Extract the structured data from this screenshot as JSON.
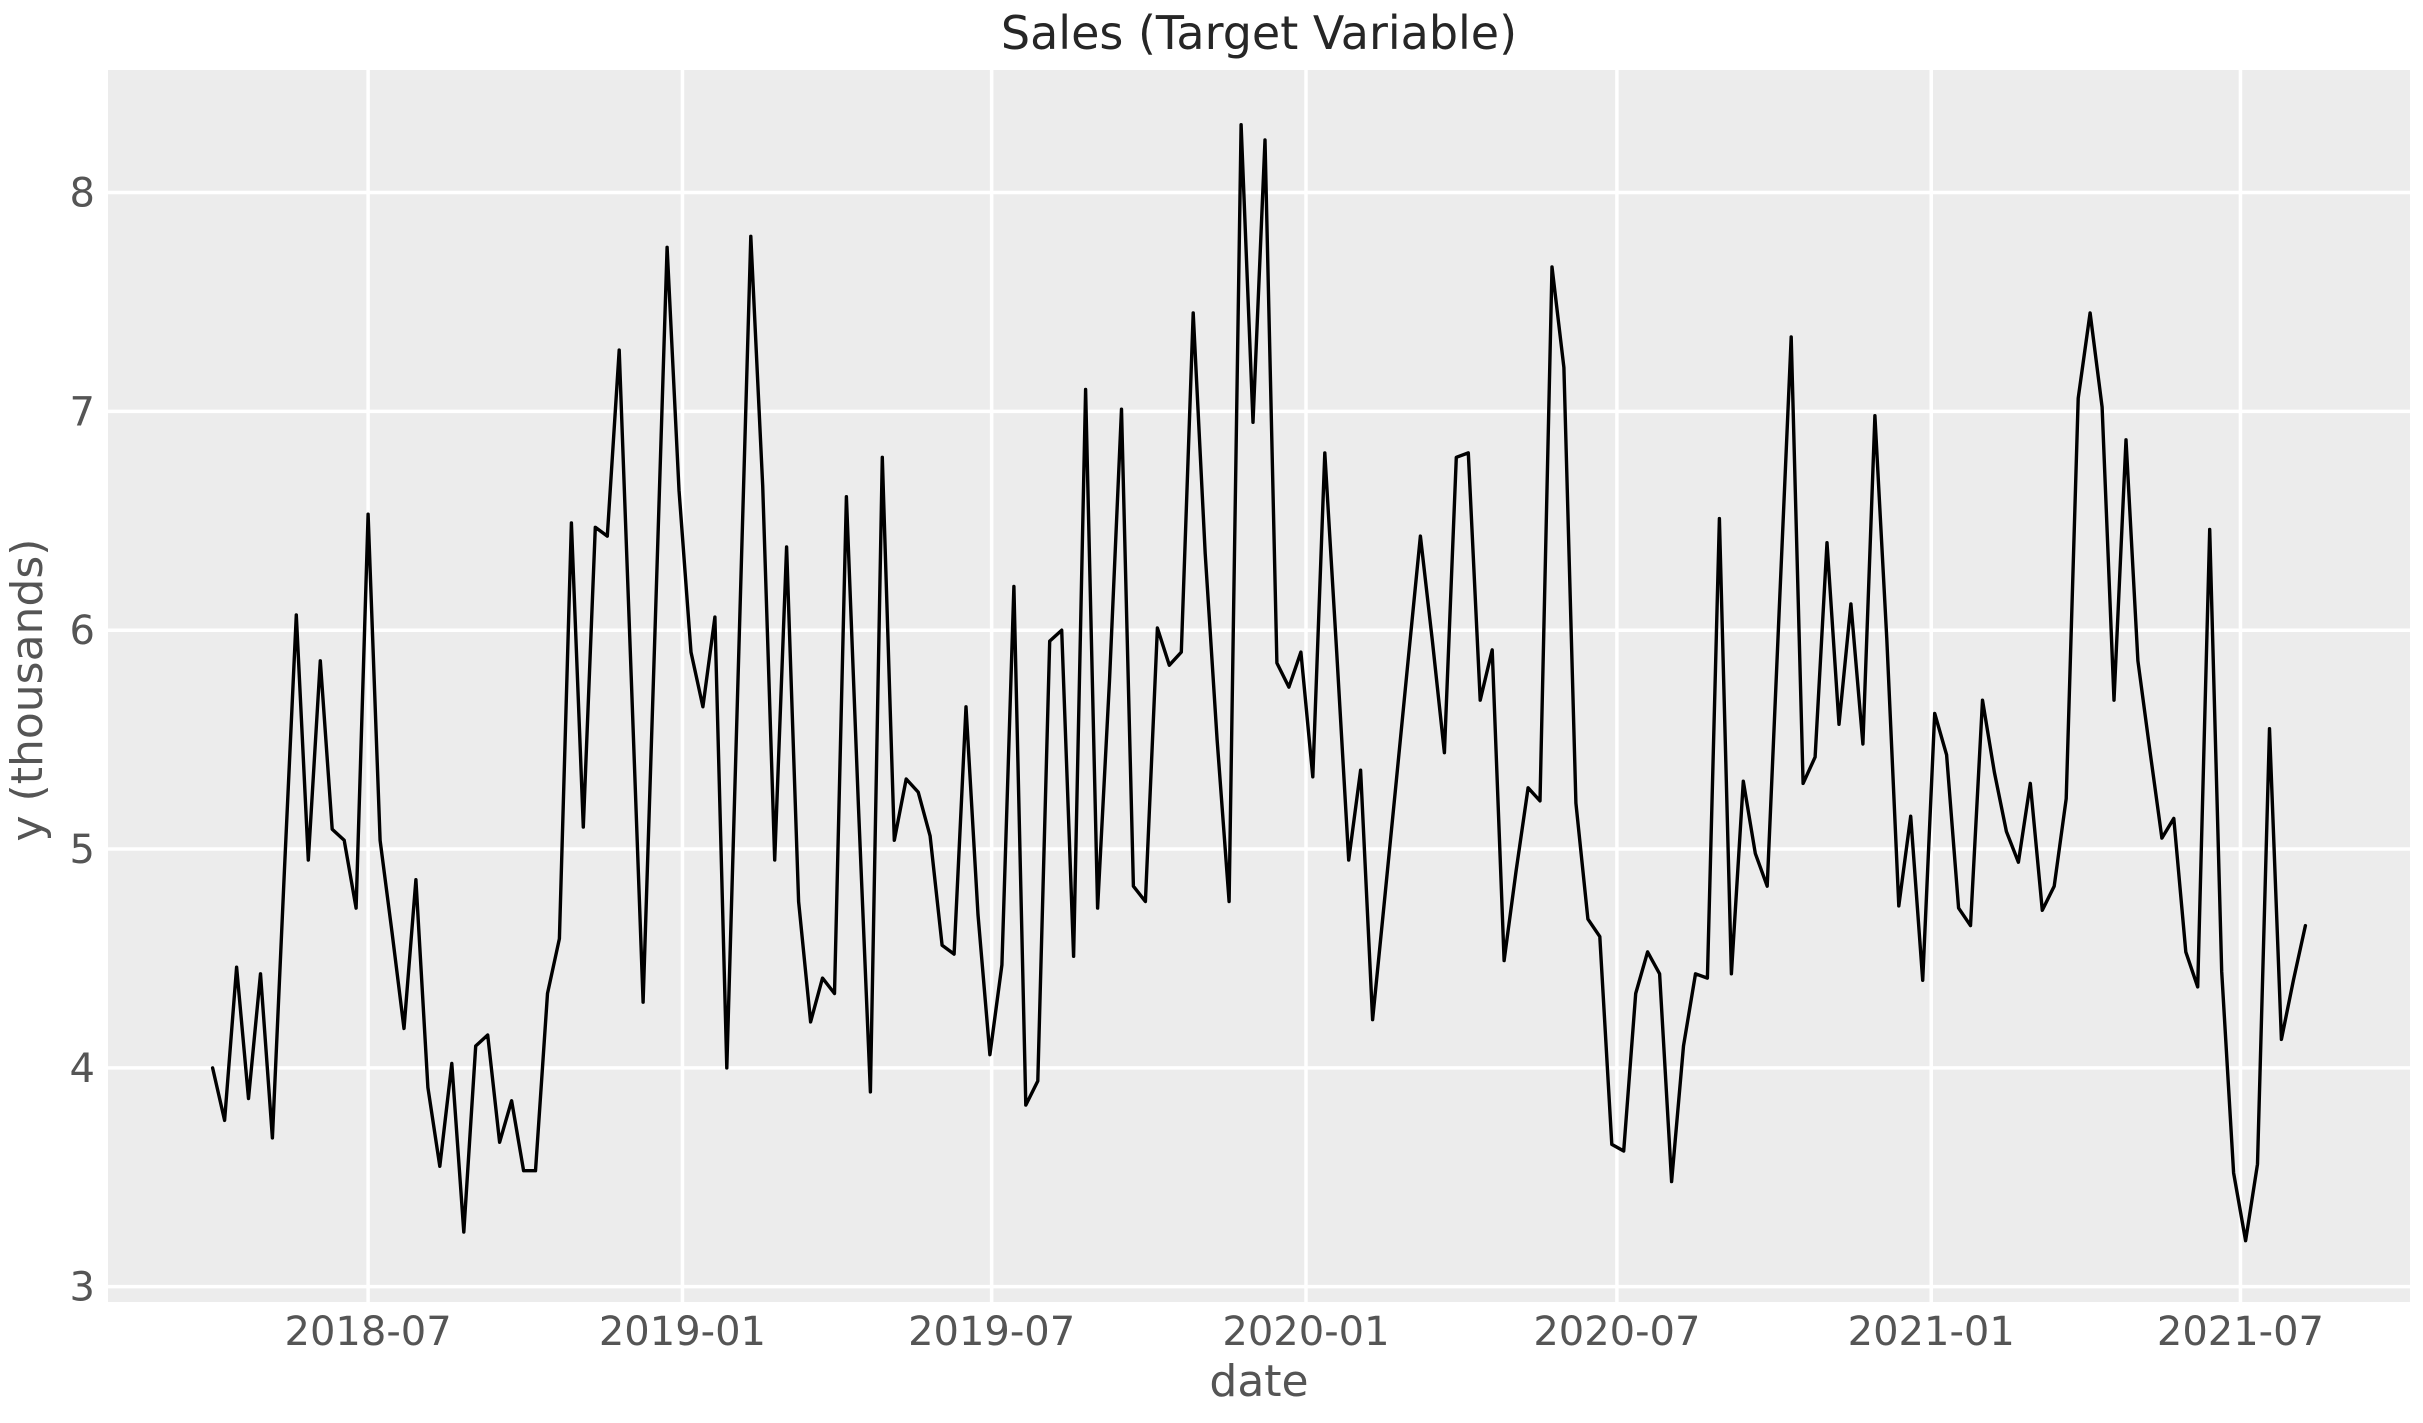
{
  "figure": {
    "title": "Sales (Target Variable)",
    "xlabel": "date",
    "ylabel": "y (thousands)"
  },
  "chart_data": {
    "type": "line",
    "title": "Sales (Target Variable)",
    "xlabel": "date",
    "ylabel": "y (thousands)",
    "legend_position": "none",
    "grid": true,
    "style": {
      "figure_bg": "#ffffff",
      "axes_bg": "#ececec",
      "grid_color": "#ffffff",
      "line_color": "#000000",
      "tick_color": "#555555",
      "title_color": "#262626"
    },
    "x_start": "2018-04-01",
    "x_interval_days": 7,
    "xticks": [
      "2018-07",
      "2019-01",
      "2019-07",
      "2020-01",
      "2020-07",
      "2021-01",
      "2021-07"
    ],
    "yticks": [
      3,
      4,
      5,
      6,
      7,
      8
    ],
    "ylim": [
      2.93,
      8.56
    ],
    "values": [
      4.0,
      3.76,
      4.46,
      3.86,
      4.43,
      3.68,
      4.9,
      6.07,
      4.95,
      5.86,
      5.09,
      5.04,
      4.73,
      6.53,
      5.04,
      4.62,
      4.18,
      4.86,
      3.91,
      3.55,
      4.02,
      3.25,
      4.1,
      4.15,
      3.66,
      3.85,
      3.53,
      3.53,
      4.34,
      4.59,
      6.49,
      5.1,
      6.47,
      6.43,
      7.28,
      5.79,
      4.3,
      6.01,
      7.75,
      6.64,
      5.9,
      5.65,
      6.06,
      4.0,
      5.9,
      7.8,
      6.66,
      4.95,
      6.38,
      4.76,
      4.21,
      4.41,
      4.34,
      6.61,
      5.2,
      3.89,
      6.79,
      5.04,
      5.32,
      5.26,
      5.06,
      4.56,
      4.52,
      5.65,
      4.7,
      4.06,
      4.47,
      6.2,
      3.83,
      3.94,
      5.95,
      6.0,
      4.51,
      7.1,
      4.73,
      5.77,
      7.01,
      4.83,
      4.76,
      6.01,
      5.84,
      5.9,
      7.45,
      6.35,
      5.5,
      4.76,
      8.31,
      6.95,
      8.24,
      5.85,
      5.74,
      5.9,
      5.33,
      6.81,
      5.9,
      4.95,
      5.36,
      4.22,
      4.77,
      5.32,
      5.88,
      6.43,
      5.95,
      5.44,
      6.79,
      6.81,
      5.68,
      5.91,
      4.49,
      4.9,
      5.28,
      5.22,
      7.66,
      7.2,
      5.21,
      4.68,
      4.6,
      3.65,
      3.62,
      4.34,
      4.53,
      4.43,
      3.48,
      4.1,
      4.43,
      4.41,
      6.51,
      4.43,
      5.31,
      4.98,
      4.83,
      6.09,
      7.34,
      5.3,
      5.42,
      6.4,
      5.57,
      6.12,
      5.48,
      6.98,
      5.96,
      4.74,
      5.15,
      4.4,
      5.62,
      5.43,
      4.73,
      4.65,
      5.68,
      5.35,
      5.08,
      4.94,
      5.3,
      4.72,
      4.83,
      5.23,
      7.06,
      7.45,
      7.02,
      5.68,
      6.87,
      5.86,
      5.45,
      5.05,
      5.14,
      4.53,
      4.37,
      6.46,
      4.44,
      3.52,
      3.21,
      3.56,
      5.55,
      4.13,
      4.4,
      4.65
    ]
  }
}
